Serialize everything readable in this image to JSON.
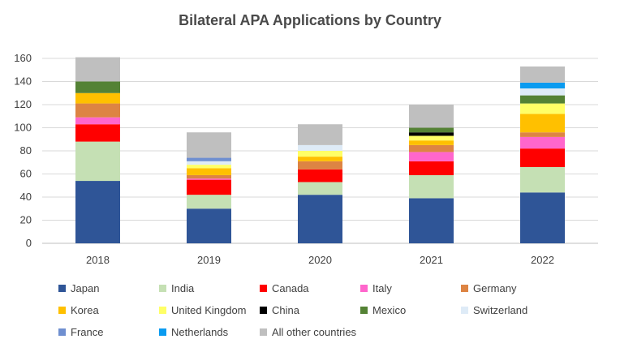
{
  "chart_data": {
    "type": "bar",
    "stacked": true,
    "title": "Bilateral APA Applications by Country",
    "categories": [
      "2018",
      "2019",
      "2020",
      "2021",
      "2022"
    ],
    "ylim": [
      0,
      160
    ],
    "yticks": [
      "0",
      "20",
      "40",
      "60",
      "80",
      "100",
      "120",
      "140",
      "160"
    ],
    "grid": true,
    "legend_position": "bottom",
    "series": [
      {
        "name": "Japan",
        "color": "#2F5597",
        "values": [
          54,
          30,
          42,
          39,
          44
        ]
      },
      {
        "name": "India",
        "color": "#C5E0B4",
        "values": [
          34,
          12,
          11,
          20,
          22
        ]
      },
      {
        "name": "Canada",
        "color": "#FF0000",
        "values": [
          15,
          13,
          11,
          12,
          16
        ]
      },
      {
        "name": "Italy",
        "color": "#FF66CC",
        "values": [
          6,
          1,
          0,
          8,
          10
        ]
      },
      {
        "name": "Germany",
        "color": "#DD8443",
        "values": [
          12,
          3,
          7,
          6,
          4
        ]
      },
      {
        "name": "Korea",
        "color": "#FFC000",
        "values": [
          9,
          6,
          4,
          4,
          16
        ]
      },
      {
        "name": "United Kingdom",
        "color": "#FFFF66",
        "values": [
          0,
          3,
          5,
          4,
          9
        ]
      },
      {
        "name": "China",
        "color": "#000000",
        "values": [
          0,
          0,
          0,
          3,
          0
        ]
      },
      {
        "name": "Mexico",
        "color": "#548235",
        "values": [
          10,
          0,
          0,
          4,
          7
        ]
      },
      {
        "name": "Switzerland",
        "color": "#DEEBF7",
        "values": [
          0,
          3,
          5,
          0,
          6
        ]
      },
      {
        "name": "France",
        "color": "#6F8FD0",
        "values": [
          0,
          3,
          0,
          0,
          0
        ]
      },
      {
        "name": "Netherlands",
        "color": "#0A9BF0",
        "values": [
          0,
          0,
          0,
          0,
          5
        ]
      },
      {
        "name": "All other countries",
        "color": "#BFBFBF",
        "values": [
          21,
          22,
          18,
          20,
          14
        ]
      }
    ]
  }
}
